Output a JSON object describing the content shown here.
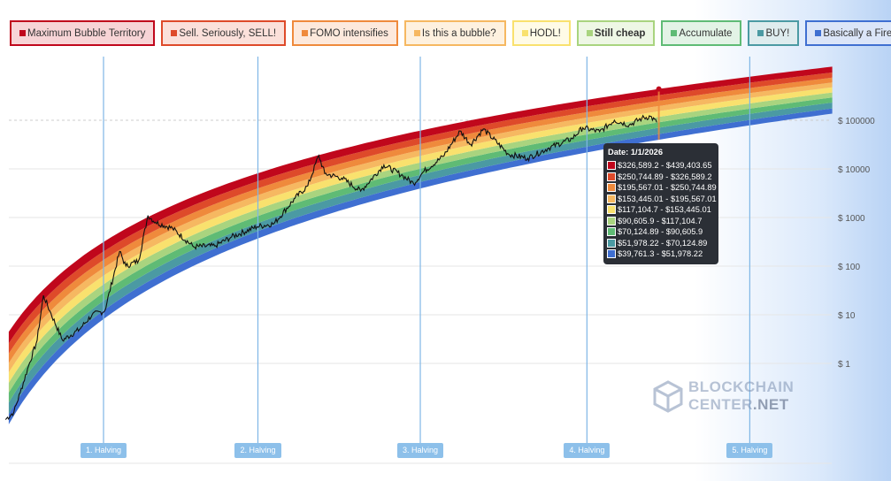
{
  "legend": [
    {
      "label": "Maximum Bubble Territory",
      "color": "#c0071c",
      "bg": "#f7d4d6",
      "bold": false
    },
    {
      "label": "Sell. Seriously, SELL!",
      "color": "#de4a2a",
      "bg": "#fbe0da",
      "bold": false
    },
    {
      "label": "FOMO intensifies",
      "color": "#ef8a3c",
      "bg": "#fde9dc",
      "bold": false
    },
    {
      "label": "Is this a bubble?",
      "color": "#f6b861",
      "bg": "#fef1df",
      "bold": false
    },
    {
      "label": "HODL!",
      "color": "#f9e16e",
      "bg": "#fffbe6",
      "bold": false
    },
    {
      "label": "Still cheap",
      "color": "#a9d47f",
      "bg": "#eef7e5",
      "bold": true
    },
    {
      "label": "Accumulate",
      "color": "#5fbb75",
      "bg": "#e3f3e6",
      "bold": false
    },
    {
      "label": "BUY!",
      "color": "#4b9aa3",
      "bg": "#deecee",
      "bold": false
    },
    {
      "label": "Basically a Fire Sale",
      "color": "#3f6fd1",
      "bg": "#dbe5f8",
      "bold": false
    }
  ],
  "tooltip": {
    "date": "Date: 1/1/2026",
    "rows": [
      "$326,589.2 - $439,403.65",
      "$250,744.89 - $326,589.2",
      "$195,567.01 - $250,744.89",
      "$153,445.01 - $195,567.01",
      "$117,104.7 - $153,445.01",
      "$90,605.9 - $117,104.7",
      "$70,124.89 - $90,605.9",
      "$51,978.22 - $70,124.89",
      "$39,761.3 - $51,978.22"
    ]
  },
  "watermark": {
    "line1": "BLOCKCHAIN",
    "line2": "CENTER",
    "line3": ".NET"
  },
  "chart_data": {
    "type": "line",
    "yscale": "log",
    "ylim": [
      0.03,
      1000000
    ],
    "xlim": [
      2010.6,
      2030.1
    ],
    "yticks": [
      {
        "value": 1,
        "label": "$ 1"
      },
      {
        "value": 10,
        "label": "$ 10"
      },
      {
        "value": 100,
        "label": "$ 100"
      },
      {
        "value": 1000,
        "label": "$ 1000"
      },
      {
        "value": 10000,
        "label": "$ 10000"
      },
      {
        "value": 100000,
        "label": "$ 100000"
      }
    ],
    "halvings": [
      {
        "label": "1. Halving",
        "year": 2012.87
      },
      {
        "label": "2. Halving",
        "year": 2016.52
      },
      {
        "label": "3. Halving",
        "year": 2020.36
      },
      {
        "label": "4. Halving",
        "year": 2024.3
      },
      {
        "label": "5. Halving",
        "year": 2028.15
      }
    ],
    "band_bounds_at_tooltip": [
      39761.3,
      51978.22,
      70124.89,
      90605.9,
      117104.7,
      153445.01,
      195567.01,
      250744.89,
      326589.2,
      439403.65
    ],
    "tooltip_year": 2026.0,
    "price": [
      [
        2010.55,
        0.07
      ],
      [
        2010.75,
        0.1
      ],
      [
        2010.9,
        0.25
      ],
      [
        2011.1,
        0.9
      ],
      [
        2011.3,
        3
      ],
      [
        2011.45,
        25
      ],
      [
        2011.6,
        12
      ],
      [
        2011.9,
        3
      ],
      [
        2012.3,
        5
      ],
      [
        2012.6,
        10
      ],
      [
        2012.9,
        12
      ],
      [
        2013.25,
        200
      ],
      [
        2013.4,
        100
      ],
      [
        2013.7,
        130
      ],
      [
        2013.92,
        1100
      ],
      [
        2014.1,
        800
      ],
      [
        2014.5,
        600
      ],
      [
        2015.0,
        250
      ],
      [
        2015.5,
        260
      ],
      [
        2015.9,
        400
      ],
      [
        2016.5,
        650
      ],
      [
        2016.9,
        750
      ],
      [
        2017.4,
        2500
      ],
      [
        2017.7,
        4500
      ],
      [
        2017.96,
        19000
      ],
      [
        2018.1,
        8000
      ],
      [
        2018.5,
        6500
      ],
      [
        2018.95,
        3500
      ],
      [
        2019.5,
        12000
      ],
      [
        2019.95,
        7200
      ],
      [
        2020.2,
        5000
      ],
      [
        2020.45,
        9000
      ],
      [
        2020.9,
        18000
      ],
      [
        2021.3,
        60000
      ],
      [
        2021.55,
        32000
      ],
      [
        2021.85,
        66000
      ],
      [
        2022.45,
        20000
      ],
      [
        2022.9,
        16500
      ],
      [
        2023.4,
        27000
      ],
      [
        2023.95,
        42000
      ],
      [
        2024.2,
        70000
      ],
      [
        2024.6,
        58000
      ],
      [
        2024.95,
        100000
      ],
      [
        2025.3,
        80000
      ],
      [
        2025.6,
        110000
      ],
      [
        2025.8,
        120000
      ],
      [
        2025.95,
        90000
      ]
    ]
  }
}
